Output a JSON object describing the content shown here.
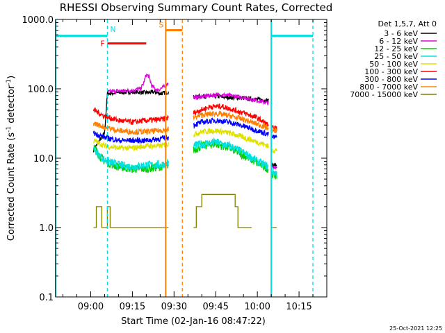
{
  "chart_data": {
    "type": "line",
    "title": "RHESSI Observing Summary Count Rates, Corrected",
    "xlabel": "Start Time (02-Jan-16 08:47:22)",
    "ylabel_main": "Corrected Count Rate (s",
    "ylabel_sup": "-1",
    "ylabel_mid": " detector",
    "ylabel_sup2": "-1",
    "ylabel_end": ")",
    "timestamp": "25-Oct-2021 12:25",
    "xlim": [
      "08:47:22",
      "10:25:00"
    ],
    "ylim": [
      0.1,
      1000
    ],
    "yscale": "log",
    "xticks": [
      {
        "t": "09:00",
        "label": "09:00"
      },
      {
        "t": "09:15",
        "label": "09:15"
      },
      {
        "t": "09:30",
        "label": "09:30"
      },
      {
        "t": "09:45",
        "label": "09:45"
      },
      {
        "t": "10:00",
        "label": "10:00"
      },
      {
        "t": "10:15",
        "label": "10:15"
      }
    ],
    "yticks": [
      {
        "v": 0.1,
        "label": "0.1"
      },
      {
        "v": 1,
        "label": "1.0"
      },
      {
        "v": 10,
        "label": "10.0"
      },
      {
        "v": 100,
        "label": "100.0"
      },
      {
        "v": 1000,
        "label": "1000.0"
      }
    ],
    "legend": {
      "placement": "right",
      "header": "Det 1,5,7, Att 0"
    },
    "series": [
      {
        "name": "3 - 6 keV",
        "color": "#000000",
        "noise": 0.03,
        "segments": [
          {
            "x": [
              "09:01",
              "09:05",
              "09:06",
              "09:10",
              "09:15",
              "09:20",
              "09:23",
              "09:25",
              "09:27",
              "09:28"
            ],
            "y": [
              13,
              23,
              85,
              88,
              90,
              88,
              90,
              85,
              88,
              90
            ]
          },
          {
            "x": [
              "09:37",
              "09:40",
              "09:45",
              "09:50",
              "09:55",
              "10:00",
              "10:04"
            ],
            "y": [
              76,
              78,
              78,
              75,
              73,
              70,
              68
            ]
          },
          {
            "x": [
              "10:05",
              "10:07"
            ],
            "y": [
              8,
              8
            ]
          }
        ]
      },
      {
        "name": "6 - 12 keV",
        "color": "#e000e0",
        "noise": 0.03,
        "segments": [
          {
            "x": [
              "09:06",
              "09:10",
              "09:15",
              "09:18",
              "09:19",
              "09:20",
              "09:21",
              "09:22",
              "09:24",
              "09:25",
              "09:27",
              "09:28"
            ],
            "y": [
              90,
              93,
              95,
              100,
              120,
              160,
              150,
              110,
              95,
              100,
              110,
              125
            ]
          },
          {
            "x": [
              "09:37",
              "09:40",
              "09:43",
              "09:47",
              "09:50",
              "09:55",
              "10:00",
              "10:04"
            ],
            "y": [
              75,
              77,
              80,
              82,
              80,
              75,
              68,
              62
            ]
          },
          {
            "x": [
              "10:05",
              "10:07"
            ],
            "y": [
              7.5,
              7.5
            ]
          }
        ]
      },
      {
        "name": "12 - 25 keV",
        "color": "#00d000",
        "noise": 0.06,
        "segments": [
          {
            "x": [
              "09:01",
              "09:03",
              "09:05",
              "09:08",
              "09:10",
              "09:15",
              "09:20",
              "09:25",
              "09:28"
            ],
            "y": [
              15,
              11,
              9,
              8,
              7.5,
              7,
              7,
              7.5,
              8
            ]
          },
          {
            "x": [
              "09:37",
              "09:40",
              "09:45",
              "09:50",
              "09:55",
              "10:00",
              "10:04"
            ],
            "y": [
              13,
              15,
              16,
              14,
              11,
              8.5,
              7
            ]
          },
          {
            "x": [
              "10:05",
              "10:07"
            ],
            "y": [
              6,
              5.5
            ]
          }
        ]
      },
      {
        "name": "25 - 50 keV",
        "color": "#00e0e0",
        "noise": 0.06,
        "segments": [
          {
            "x": [
              "09:01",
              "09:03",
              "09:05",
              "09:08",
              "09:10",
              "09:15",
              "09:20",
              "09:25",
              "09:28"
            ],
            "y": [
              14,
              11,
              9.5,
              8.5,
              8,
              7.5,
              8,
              8,
              8.5
            ]
          },
          {
            "x": [
              "09:37",
              "09:40",
              "09:45",
              "09:50",
              "09:55",
              "10:00",
              "10:04"
            ],
            "y": [
              15,
              16,
              17,
              15,
              12,
              9,
              7.5
            ]
          },
          {
            "x": [
              "10:05",
              "10:07"
            ],
            "y": [
              6.5,
              6
            ]
          }
        ]
      },
      {
        "name": "50 - 100 keV",
        "color": "#e0e000",
        "noise": 0.04,
        "segments": [
          {
            "x": [
              "09:01",
              "09:05",
              "09:10",
              "09:15",
              "09:20",
              "09:25",
              "09:28"
            ],
            "y": [
              18,
              15,
              14,
              14,
              15,
              15,
              16
            ]
          },
          {
            "x": [
              "09:37",
              "09:40",
              "09:45",
              "09:50",
              "09:55",
              "10:00",
              "10:04"
            ],
            "y": [
              22,
              24,
              25,
              23,
              20,
              17,
              15
            ]
          },
          {
            "x": [
              "10:05",
              "10:07"
            ],
            "y": [
              13,
              13
            ]
          }
        ]
      },
      {
        "name": "100 - 300 keV",
        "color": "#ff0000",
        "noise": 0.04,
        "segments": [
          {
            "x": [
              "09:01",
              "09:03",
              "09:05",
              "09:08",
              "09:10",
              "09:15",
              "09:20",
              "09:25",
              "09:28"
            ],
            "y": [
              50,
              45,
              40,
              37,
              35,
              33,
              35,
              36,
              38
            ]
          },
          {
            "x": [
              "09:37",
              "09:40",
              "09:43",
              "09:47",
              "09:50",
              "09:55",
              "10:00",
              "10:04"
            ],
            "y": [
              45,
              50,
              55,
              56,
              52,
              45,
              38,
              30
            ]
          },
          {
            "x": [
              "10:05",
              "10:07"
            ],
            "y": [
              27,
              27
            ]
          }
        ]
      },
      {
        "name": "300 - 800 keV",
        "color": "#0000ff",
        "noise": 0.04,
        "segments": [
          {
            "x": [
              "09:01",
              "09:05",
              "09:10",
              "09:15",
              "09:20",
              "09:25",
              "09:28"
            ],
            "y": [
              23,
              20,
              18,
              18,
              18,
              19,
              20
            ]
          },
          {
            "x": [
              "09:37",
              "09:40",
              "09:45",
              "09:50",
              "09:55",
              "10:00",
              "10:04"
            ],
            "y": [
              30,
              33,
              35,
              33,
              29,
              25,
              22
            ]
          },
          {
            "x": [
              "10:05",
              "10:07"
            ],
            "y": [
              20,
              20
            ]
          }
        ]
      },
      {
        "name": "800 - 7000 keV",
        "color": "#ff8000",
        "noise": 0.04,
        "segments": [
          {
            "x": [
              "09:01",
              "09:05",
              "09:10",
              "09:15",
              "09:20",
              "09:25",
              "09:28"
            ],
            "y": [
              32,
              28,
              25,
              24,
              24,
              25,
              26
            ]
          },
          {
            "x": [
              "09:37",
              "09:40",
              "09:45",
              "09:50",
              "09:55",
              "10:00",
              "10:04"
            ],
            "y": [
              38,
              42,
              44,
              41,
              36,
              31,
              27
            ]
          },
          {
            "x": [
              "10:05",
              "10:07"
            ],
            "y": [
              25,
              25
            ]
          }
        ]
      },
      {
        "name": "7000 - 15000 keV",
        "color": "#808000",
        "noise": 0,
        "steps": true,
        "segments": [
          {
            "x": [
              "09:01",
              "09:02",
              "09:04",
              "09:06",
              "09:07",
              "09:10",
              "09:12",
              "09:28"
            ],
            "y": [
              1,
              2,
              1,
              2,
              1,
              1,
              1,
              1
            ]
          },
          {
            "x": [
              "09:37",
              "09:38",
              "09:40",
              "09:43",
              "09:48",
              "09:52",
              "09:53",
              "09:55",
              "09:58"
            ],
            "y": [
              1,
              2,
              3,
              3,
              3,
              2,
              1,
              1,
              1
            ]
          },
          {
            "x": [
              "10:05",
              "10:07"
            ],
            "y": [
              1,
              1
            ]
          }
        ]
      }
    ],
    "annotations": [
      {
        "label": "N",
        "color": "#00e0e0",
        "x_start": "09:06",
        "x_end": "09:06",
        "y": 600
      },
      {
        "label": "F",
        "color": "#ff0000",
        "x_start": "09:06",
        "x_end": "09:20",
        "y": 450
      },
      {
        "label": "S",
        "color": "#ff8000",
        "x_start": "09:27",
        "x_end": "09:33",
        "y": 700
      }
    ],
    "bars": [
      {
        "color": "#00e0e0",
        "x_start": "08:47:22",
        "x_end": "09:06",
        "y": 580
      },
      {
        "color": "#00e0e0",
        "x_start": "10:05",
        "x_end": "10:20",
        "y": 580
      }
    ],
    "vlines": [
      {
        "x": "08:47:22",
        "color": "#00e0e0",
        "style": "solid"
      },
      {
        "x": "09:06",
        "color": "#00e0e0",
        "style": "dashed"
      },
      {
        "x": "09:27",
        "color": "#ff8000",
        "style": "solid"
      },
      {
        "x": "09:33",
        "color": "#ff8000",
        "style": "dashed"
      },
      {
        "x": "10:05",
        "color": "#00e0e0",
        "style": "solid"
      },
      {
        "x": "10:20",
        "color": "#00e0e0",
        "style": "dashed"
      }
    ]
  }
}
